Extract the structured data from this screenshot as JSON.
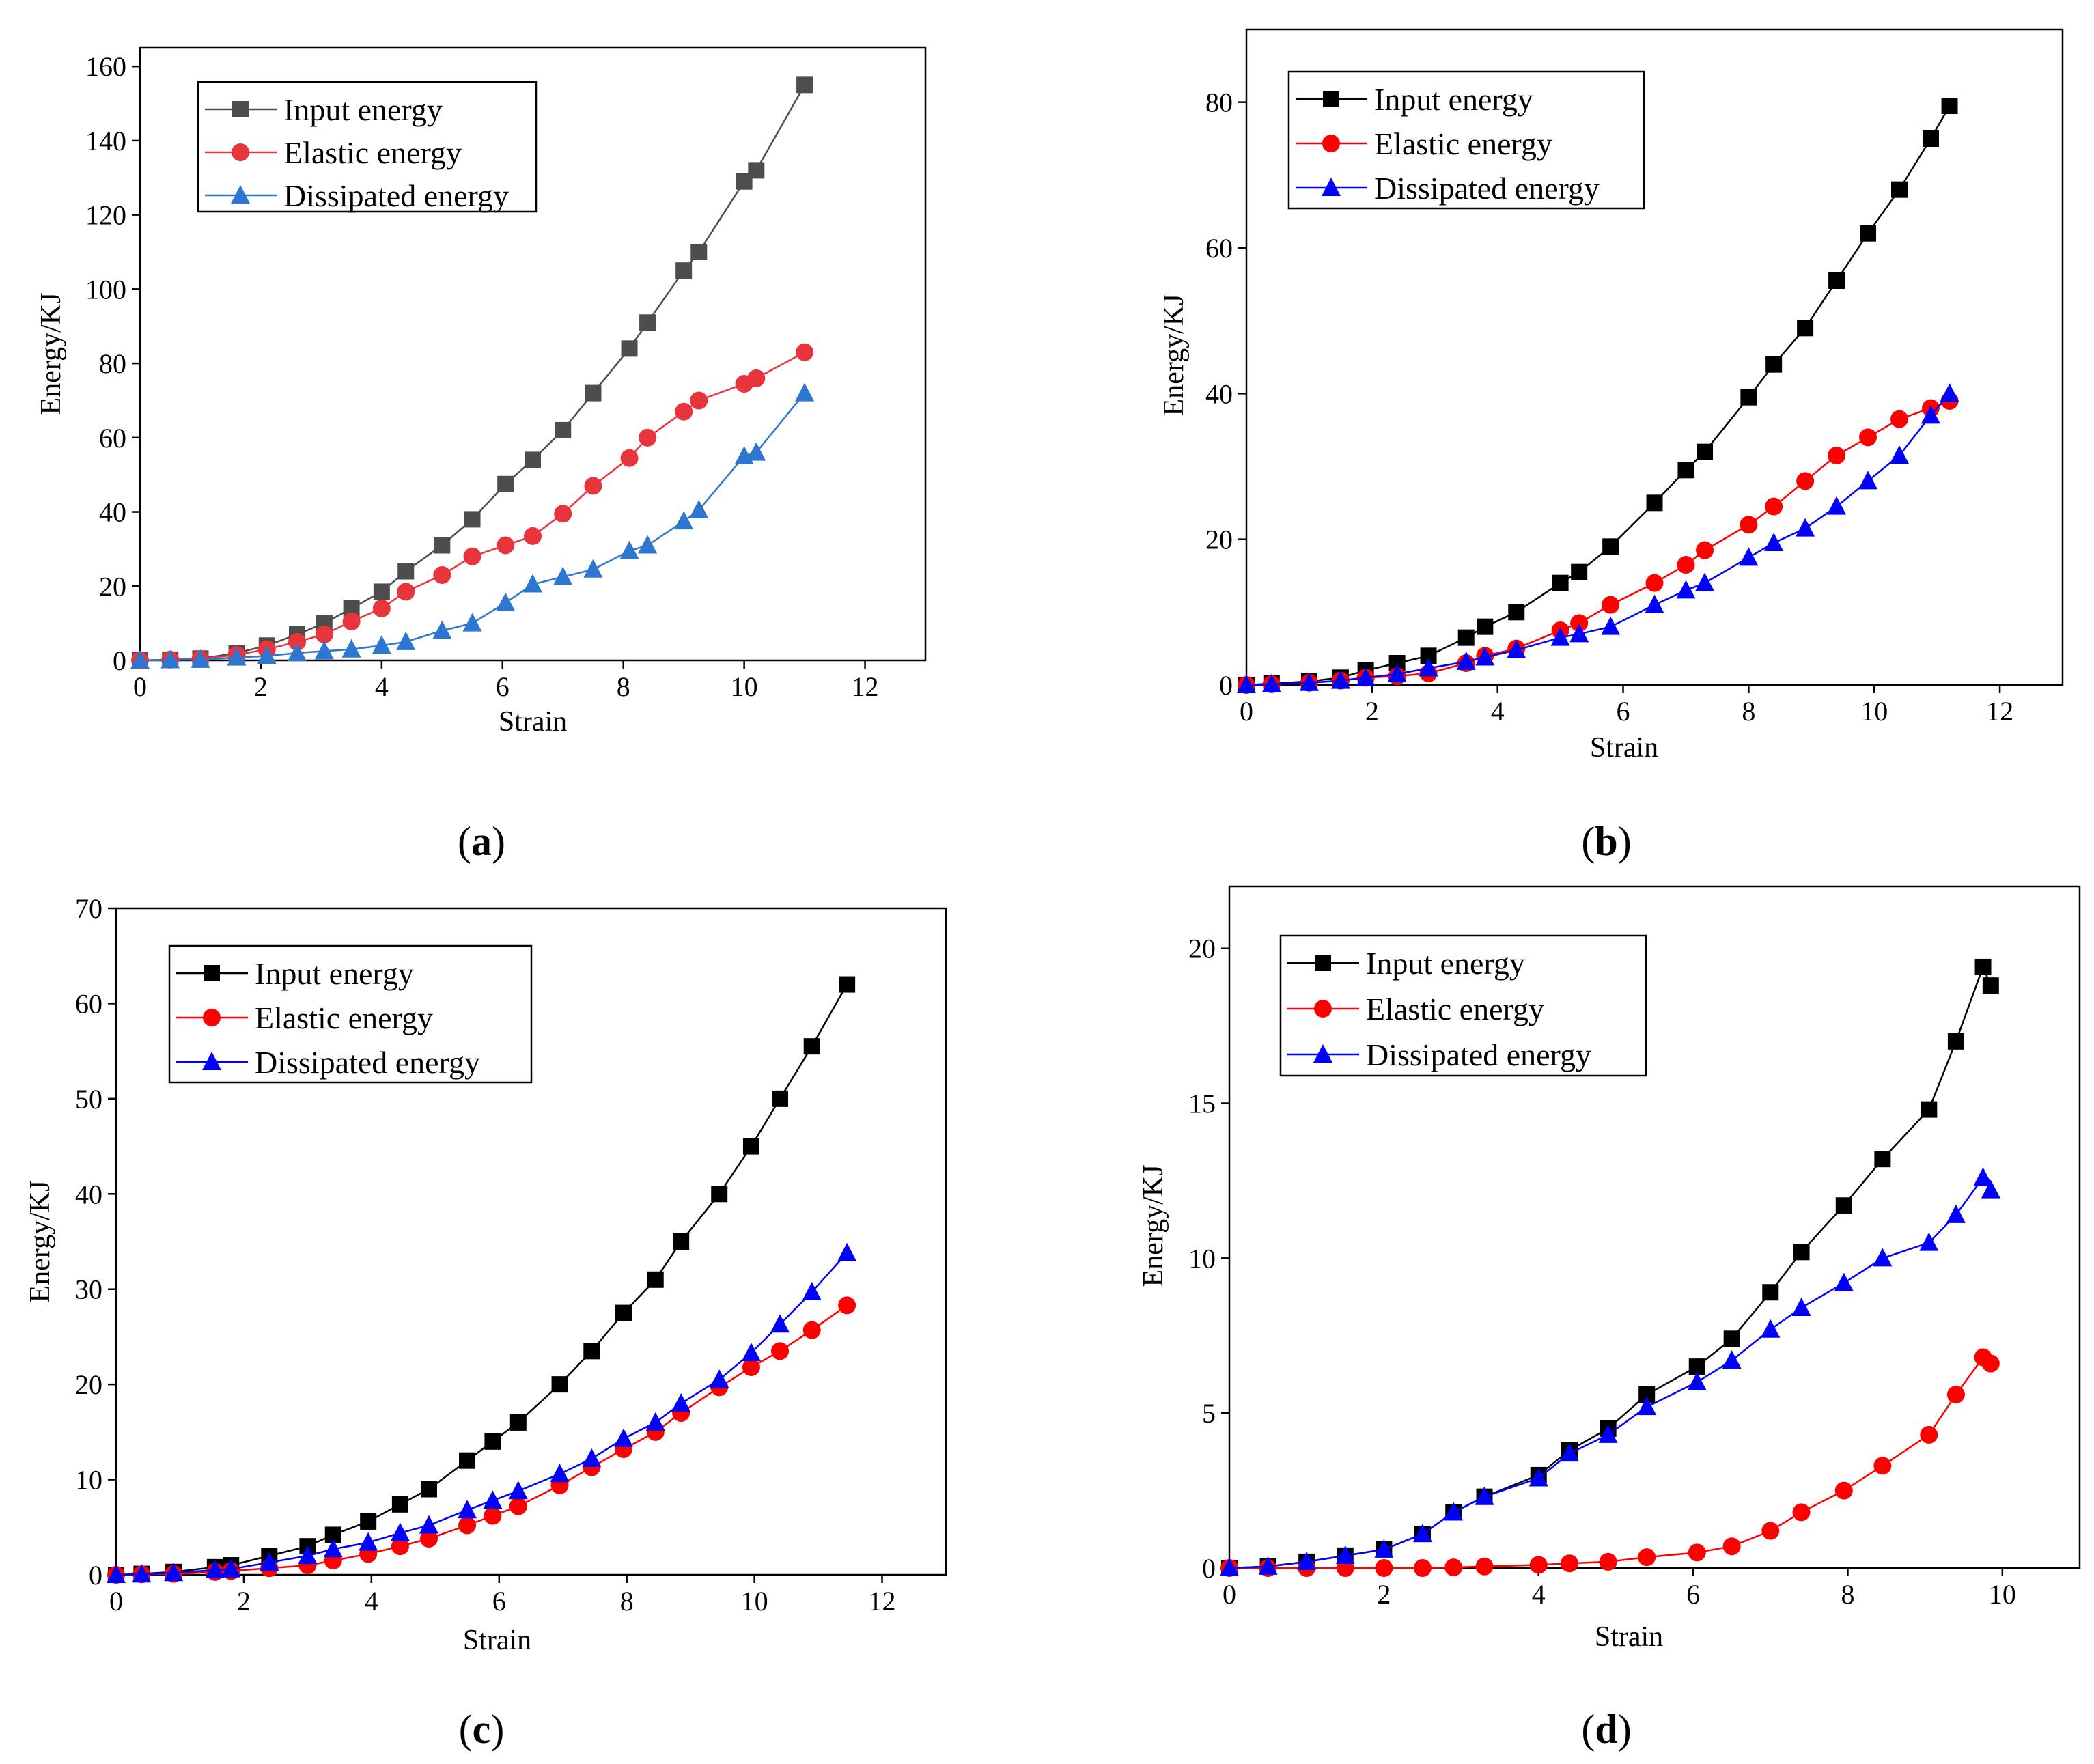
{
  "colors": {
    "a": {
      "input": "#4d4d4d",
      "elastic": "#e8343c",
      "dissipated": "#2e77d0"
    },
    "b": {
      "input": "#000000",
      "elastic": "#ff0000",
      "dissipated": "#0000ff"
    },
    "c": {
      "input": "#000000",
      "elastic": "#ff0000",
      "dissipated": "#0000ff"
    },
    "d": {
      "input": "#000000",
      "elastic": "#ff0000",
      "dissipated": "#0000ff"
    }
  },
  "chart_data": [
    {
      "id": "a",
      "caption": "a",
      "type": "line",
      "xlabel": "Strain",
      "ylabel": "Energy/KJ",
      "xlim": [
        0,
        13
      ],
      "ylim": [
        0,
        165
      ],
      "xticks": [
        "0",
        "2",
        "4",
        "6",
        "8",
        "10",
        "12"
      ],
      "yticks": [
        "0",
        "20",
        "40",
        "60",
        "80",
        "100",
        "120",
        "140",
        "160"
      ],
      "legend_position": "top-left",
      "series": [
        {
          "name": "Input energy",
          "marker": "square",
          "x": [
            0,
            0.5,
            1,
            1.6,
            2.1,
            2.6,
            3.05,
            3.5,
            4,
            4.4,
            5,
            5.5,
            6.05,
            6.5,
            7,
            7.5,
            8.1,
            8.4,
            9,
            9.25,
            10,
            10.2,
            11
          ],
          "y": [
            0,
            0.2,
            0.5,
            2,
            4,
            7,
            10,
            14,
            18.5,
            24,
            31,
            38,
            47.5,
            54,
            62,
            72,
            84,
            91,
            105,
            110,
            129,
            132,
            155
          ]
        },
        {
          "name": "Elastic energy",
          "marker": "circle",
          "x": [
            0,
            0.5,
            1,
            1.6,
            2.1,
            2.6,
            3.05,
            3.5,
            4,
            4.4,
            5,
            5.5,
            6.05,
            6.5,
            7,
            7.5,
            8.1,
            8.4,
            9,
            9.25,
            10,
            10.2,
            11
          ],
          "y": [
            0,
            0.2,
            0.4,
            1.5,
            3,
            5,
            7,
            10.5,
            14,
            18.5,
            23,
            28,
            31,
            33.5,
            39.5,
            47,
            54.5,
            60,
            67,
            70,
            74.5,
            76,
            83
          ]
        },
        {
          "name": "Dissipated energy",
          "marker": "triangle",
          "x": [
            0,
            0.5,
            1,
            1.6,
            2.1,
            2.6,
            3.05,
            3.5,
            4,
            4.4,
            5,
            5.5,
            6.05,
            6.5,
            7,
            7.5,
            8.1,
            8.4,
            9,
            9.25,
            10,
            10.2,
            11
          ],
          "y": [
            0,
            0.1,
            0.2,
            0.8,
            1.2,
            2,
            2.5,
            3,
            4,
            5,
            8,
            10,
            15.5,
            20.5,
            22.5,
            24.5,
            29.5,
            31,
            37.5,
            40.5,
            55,
            56,
            72
          ]
        }
      ]
    },
    {
      "id": "b",
      "caption": "b",
      "type": "line",
      "xlabel": "Strain",
      "ylabel": "Energy/KJ",
      "xlim": [
        0,
        13
      ],
      "ylim": [
        0,
        90
      ],
      "xticks": [
        "0",
        "2",
        "4",
        "6",
        "8",
        "10",
        "12"
      ],
      "yticks": [
        "0",
        "20",
        "40",
        "60",
        "80"
      ],
      "legend_position": "top-left",
      "series": [
        {
          "name": "Input energy",
          "marker": "square",
          "x": [
            0,
            0.4,
            1,
            1.5,
            1.9,
            2.4,
            2.9,
            3.5,
            3.8,
            4.3,
            5,
            5.3,
            5.8,
            6.5,
            7,
            7.3,
            8,
            8.4,
            8.9,
            9.4,
            9.9,
            10.4,
            10.9,
            11.2
          ],
          "y": [
            0,
            0.2,
            0.5,
            1,
            2,
            3,
            4,
            6.5,
            8,
            10,
            14,
            15.5,
            19,
            25,
            29.5,
            32,
            39.5,
            44,
            49,
            55.5,
            62,
            68,
            75,
            79.5
          ]
        },
        {
          "name": "Elastic energy",
          "marker": "circle",
          "x": [
            0,
            0.4,
            1,
            1.5,
            1.9,
            2.4,
            2.9,
            3.5,
            3.8,
            4.3,
            5,
            5.3,
            5.8,
            6.5,
            7,
            7.3,
            8,
            8.4,
            8.9,
            9.4,
            9.9,
            10.4,
            10.9,
            11.2
          ],
          "y": [
            0,
            0.1,
            0.3,
            0.6,
            1,
            1.2,
            1.6,
            3,
            4,
            5,
            7.5,
            8.5,
            11,
            14,
            16.5,
            18.5,
            22,
            24.5,
            28,
            31.5,
            34,
            36.5,
            38,
            39
          ]
        },
        {
          "name": "Dissipated energy",
          "marker": "triangle",
          "x": [
            0,
            0.4,
            1,
            1.5,
            1.9,
            2.4,
            2.9,
            3.5,
            3.8,
            4.3,
            5,
            5.3,
            5.8,
            6.5,
            7,
            7.3,
            8,
            8.4,
            8.9,
            9.4,
            9.9,
            10.4,
            10.9,
            11.2
          ],
          "y": [
            0,
            0.1,
            0.3,
            0.6,
            1,
            1.5,
            2.3,
            3.2,
            3.8,
            4.8,
            6.5,
            7,
            8,
            11,
            13,
            14,
            17.5,
            19.5,
            21.5,
            24.5,
            28,
            31.5,
            37,
            40
          ]
        }
      ]
    },
    {
      "id": "c",
      "caption": "c",
      "type": "line",
      "xlabel": "Strain",
      "ylabel": "Energy/KJ",
      "xlim": [
        0,
        13
      ],
      "ylim": [
        0,
        70
      ],
      "xticks": [
        "0",
        "2",
        "4",
        "6",
        "8",
        "10",
        "12"
      ],
      "yticks": [
        "0",
        "10",
        "20",
        "30",
        "40",
        "50",
        "60",
        "70"
      ],
      "legend_position": "top-left",
      "series": [
        {
          "name": "Input energy",
          "marker": "square",
          "x": [
            0,
            0.4,
            0.9,
            1.55,
            1.8,
            2.4,
            3,
            3.4,
            3.95,
            4.45,
            4.9,
            5.5,
            5.9,
            6.3,
            6.95,
            7.45,
            7.95,
            8.45,
            8.85,
            9.45,
            9.95,
            10.4,
            10.9,
            11.45
          ],
          "y": [
            0,
            0.1,
            0.3,
            0.8,
            1,
            2,
            3,
            4.2,
            5.6,
            7.4,
            9,
            12,
            14,
            16,
            20,
            23.5,
            27.5,
            31,
            35,
            40,
            45,
            50,
            55.5,
            62
          ]
        },
        {
          "name": "Elastic energy",
          "marker": "circle",
          "x": [
            0,
            0.4,
            0.9,
            1.55,
            1.8,
            2.4,
            3,
            3.4,
            3.95,
            4.45,
            4.9,
            5.5,
            5.9,
            6.3,
            6.95,
            7.45,
            7.95,
            8.45,
            8.85,
            9.45,
            9.95,
            10.4,
            10.9,
            11.45
          ],
          "y": [
            0,
            0.05,
            0.1,
            0.3,
            0.4,
            0.7,
            1,
            1.5,
            2.2,
            3,
            3.8,
            5.2,
            6.2,
            7.2,
            9.4,
            11.3,
            13.2,
            15,
            17,
            19.7,
            21.8,
            23.5,
            25.7,
            28.3
          ]
        },
        {
          "name": "Dissipated energy",
          "marker": "triangle",
          "x": [
            0,
            0.4,
            0.9,
            1.55,
            1.8,
            2.4,
            3,
            3.4,
            3.95,
            4.45,
            4.9,
            5.5,
            5.9,
            6.3,
            6.95,
            7.45,
            7.95,
            8.45,
            8.85,
            9.45,
            9.95,
            10.4,
            10.9,
            11.45
          ],
          "y": [
            0,
            0.05,
            0.2,
            0.5,
            0.6,
            1.3,
            2,
            2.7,
            3.4,
            4.4,
            5.2,
            6.8,
            7.8,
            8.8,
            10.6,
            12.2,
            14.3,
            16,
            18,
            20.5,
            23.3,
            26.3,
            29.7,
            33.8
          ]
        }
      ]
    },
    {
      "id": "d",
      "caption": "d",
      "type": "line",
      "xlabel": "Strain",
      "ylabel": "Energy/KJ",
      "xlim": [
        0,
        11
      ],
      "ylim": [
        0,
        22
      ],
      "xticks": [
        "0",
        "2",
        "4",
        "6",
        "8",
        "10"
      ],
      "yticks": [
        "0",
        "5",
        "10",
        "15",
        "20"
      ],
      "legend_position": "top-left",
      "series": [
        {
          "name": "Input energy",
          "marker": "square",
          "x": [
            0,
            0.5,
            1,
            1.5,
            2,
            2.5,
            2.9,
            3.3,
            4,
            4.4,
            4.9,
            5.4,
            6.05,
            6.5,
            7,
            7.4,
            7.95,
            8.45,
            9.05,
            9.4,
            9.75,
            9.85
          ],
          "y": [
            0,
            0.05,
            0.2,
            0.4,
            0.6,
            1.1,
            1.8,
            2.3,
            3,
            3.8,
            4.5,
            5.6,
            6.5,
            7.4,
            8.9,
            10.2,
            11.7,
            13.2,
            14.8,
            17,
            19.4,
            18.8
          ]
        },
        {
          "name": "Elastic energy",
          "marker": "circle",
          "x": [
            0,
            0.5,
            1,
            1.5,
            2,
            2.5,
            2.9,
            3.3,
            4,
            4.4,
            4.9,
            5.4,
            6.05,
            6.5,
            7,
            7.4,
            7.95,
            8.45,
            9.05,
            9.4,
            9.75,
            9.85
          ],
          "y": [
            0,
            0,
            0,
            0,
            0,
            0,
            0.02,
            0.05,
            0.1,
            0.15,
            0.2,
            0.35,
            0.5,
            0.7,
            1.2,
            1.8,
            2.5,
            3.3,
            4.3,
            5.6,
            6.8,
            6.6
          ]
        },
        {
          "name": "Dissipated energy",
          "marker": "triangle",
          "x": [
            0,
            0.5,
            1,
            1.5,
            2,
            2.5,
            2.9,
            3.3,
            4,
            4.4,
            4.9,
            5.4,
            6.05,
            6.5,
            7,
            7.4,
            7.95,
            8.45,
            9.05,
            9.4,
            9.75,
            9.85
          ],
          "y": [
            0,
            0.05,
            0.2,
            0.4,
            0.6,
            1.1,
            1.8,
            2.3,
            2.9,
            3.7,
            4.3,
            5.2,
            6,
            6.7,
            7.7,
            8.4,
            9.2,
            10,
            10.5,
            11.4,
            12.6,
            12.2
          ]
        }
      ]
    }
  ]
}
